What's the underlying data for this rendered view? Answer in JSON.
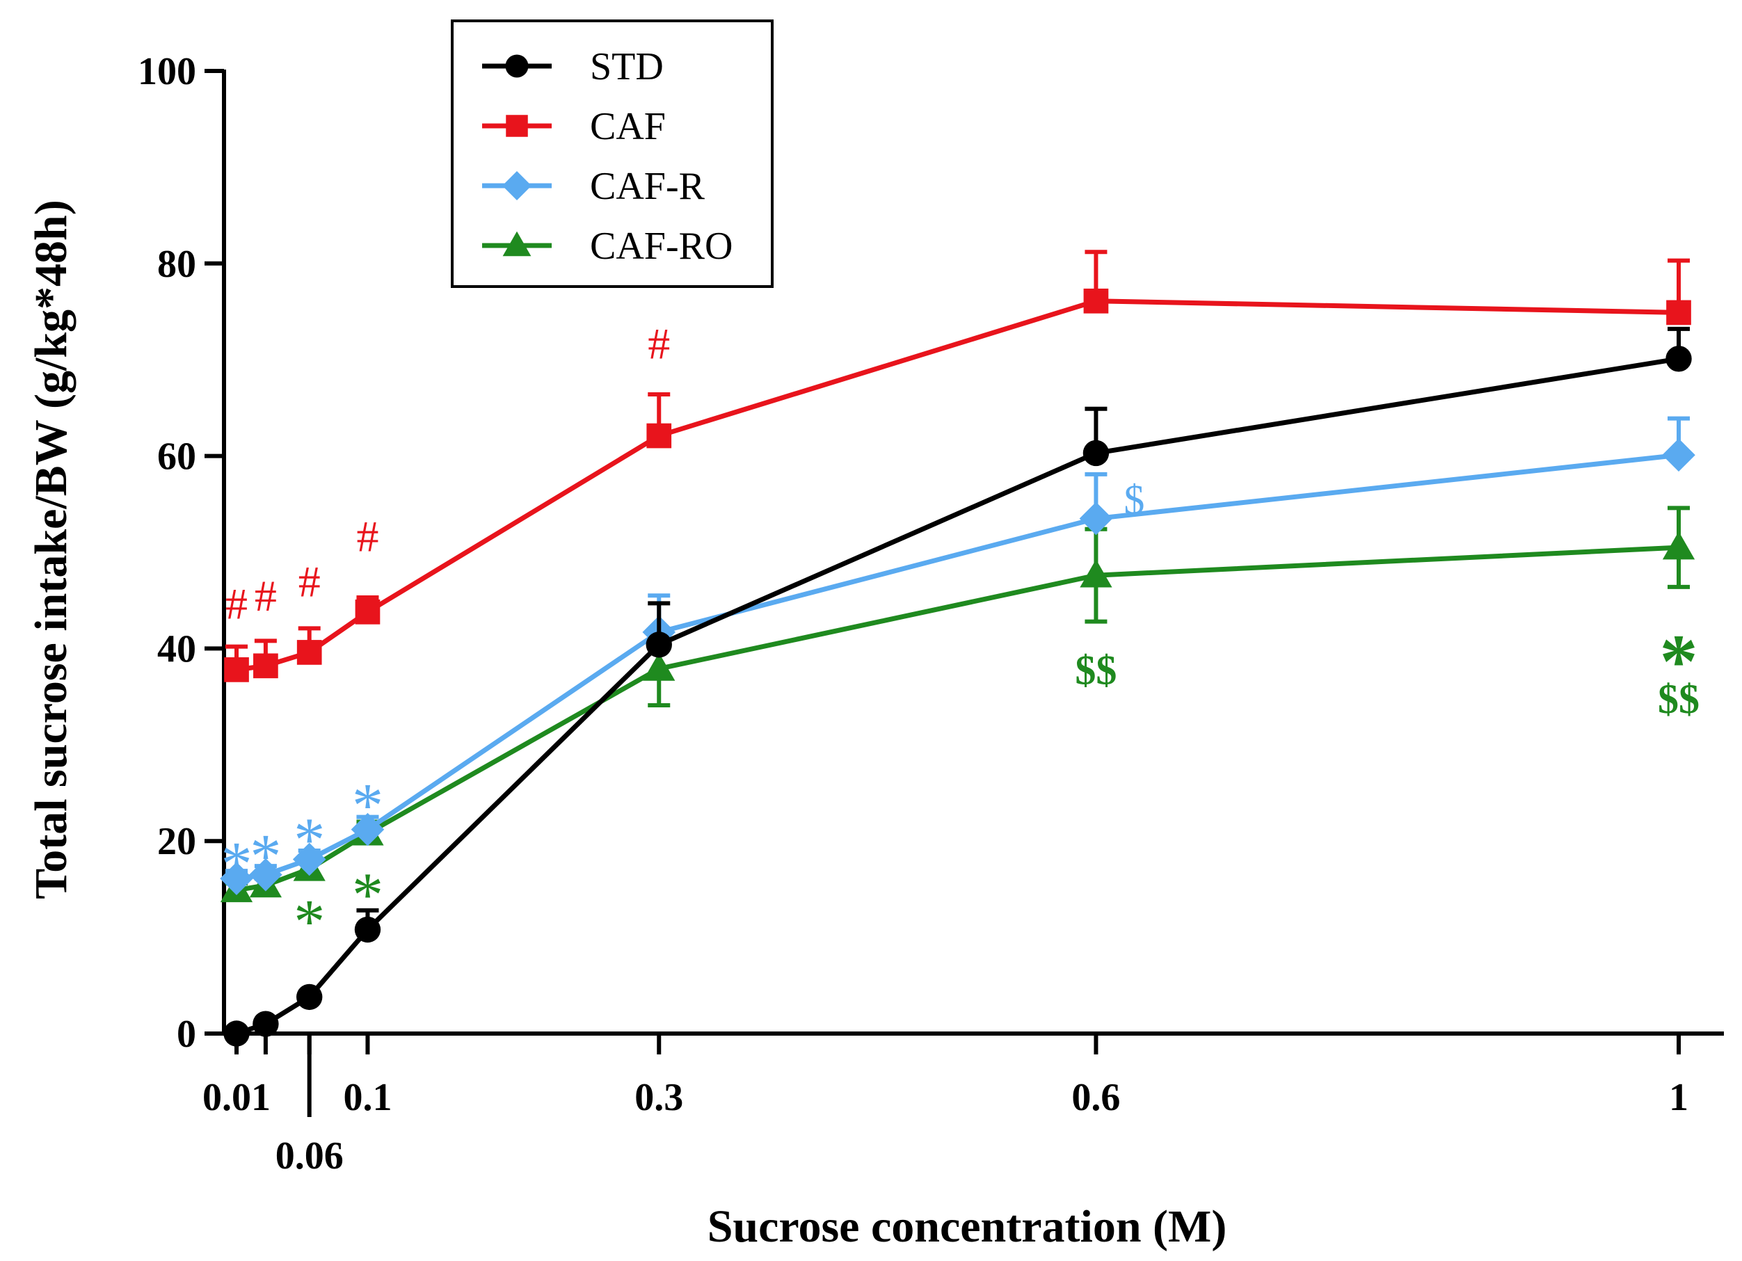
{
  "chart_data": {
    "type": "line",
    "xlabel": "Sucrose concentration (M)",
    "ylabel": "Total sucrose intake/BW (g/kg*48h)",
    "ylim": [
      0,
      100
    ],
    "y_ticks": [
      0,
      20,
      40,
      60,
      80,
      100
    ],
    "x_ticks": [
      {
        "value": 0.01,
        "label": "0.01",
        "row": "upper"
      },
      {
        "value": 0.06,
        "label": "0.06",
        "row": "lower"
      },
      {
        "value": 0.1,
        "label": "0.1",
        "row": "upper"
      },
      {
        "value": 0.3,
        "label": "0.3",
        "row": "upper"
      },
      {
        "value": 0.6,
        "label": "0.6",
        "row": "upper"
      },
      {
        "value": 1,
        "label": "1",
        "row": "upper"
      }
    ],
    "x": [
      0.01,
      0.03,
      0.06,
      0.1,
      0.3,
      0.6,
      1
    ],
    "legend_position": "top-left",
    "series": [
      {
        "name": "STD",
        "color": "#000000",
        "marker": "circle",
        "values": [
          0,
          1,
          3.8,
          10.8,
          40.4,
          60.3,
          70.1
        ],
        "errors": [
          0,
          0.4,
          0.5,
          2,
          4.3,
          4.6,
          3.1
        ]
      },
      {
        "name": "CAF",
        "color": "#e8141c",
        "marker": "square",
        "values": [
          37.8,
          38.2,
          39.6,
          43.8,
          62.1,
          76.1,
          74.9
        ],
        "errors": [
          2.4,
          2.6,
          2.5,
          1.5,
          4.3,
          5.1,
          5.4
        ]
      },
      {
        "name": "CAF-R",
        "color": "#5aaaf0",
        "marker": "diamond",
        "values": [
          16.1,
          16.5,
          18.1,
          21.2,
          41.7,
          53.5,
          60.1
        ],
        "errors": [
          0.8,
          0.9,
          0.9,
          1.3,
          3.8,
          4.6,
          3.8
        ]
      },
      {
        "name": "CAF-RO",
        "color": "#1f8a1f",
        "marker": "triangle",
        "values": [
          14.9,
          15.4,
          17.1,
          20.8,
          37.9,
          47.6,
          50.5
        ],
        "errors": [
          0.7,
          0.7,
          0.8,
          1.2,
          3.8,
          4.8,
          4.1
        ]
      }
    ],
    "annotations": [
      {
        "text": "#",
        "x": 0.01,
        "y": 44.5,
        "series": "CAF",
        "size": 64
      },
      {
        "text": "#",
        "x": 0.03,
        "y": 45.3,
        "series": "CAF",
        "size": 64
      },
      {
        "text": "#",
        "x": 0.06,
        "y": 46.8,
        "series": "CAF",
        "size": 64
      },
      {
        "text": "#",
        "x": 0.1,
        "y": 51.5,
        "series": "CAF",
        "size": 64
      },
      {
        "text": "#",
        "x": 0.3,
        "y": 71.5,
        "series": "CAF",
        "size": 64
      },
      {
        "text": "*",
        "x": 0.01,
        "y": 17.4,
        "series": "CAF-R",
        "size": 90
      },
      {
        "text": "*",
        "x": 0.03,
        "y": 18.2,
        "series": "CAF-R",
        "size": 90
      },
      {
        "text": "*",
        "x": 0.06,
        "y": 19.9,
        "series": "CAF-R",
        "size": 90
      },
      {
        "text": "*",
        "x": 0.1,
        "y": 23.5,
        "series": "CAF-R",
        "size": 90
      },
      {
        "text": "$",
        "x": 0.6,
        "y": 55.3,
        "series": "CAF-R",
        "size": 60,
        "dx": 55
      },
      {
        "text": "*",
        "x": 0.06,
        "y": 11.4,
        "series": "CAF-RO",
        "size": 90
      },
      {
        "text": "*",
        "x": 0.1,
        "y": 14.2,
        "series": "CAF-RO",
        "size": 90
      },
      {
        "text": "$$",
        "x": 0.6,
        "y": 37.6,
        "series": "CAF-RO",
        "size": 60,
        "bold": true
      },
      {
        "text": "*",
        "x": 1,
        "y": 38.4,
        "series": "CAF-RO",
        "size": 110,
        "bold": true
      },
      {
        "text": "$$",
        "x": 1,
        "y": 34.6,
        "series": "CAF-RO",
        "size": 60,
        "bold": true
      }
    ]
  }
}
